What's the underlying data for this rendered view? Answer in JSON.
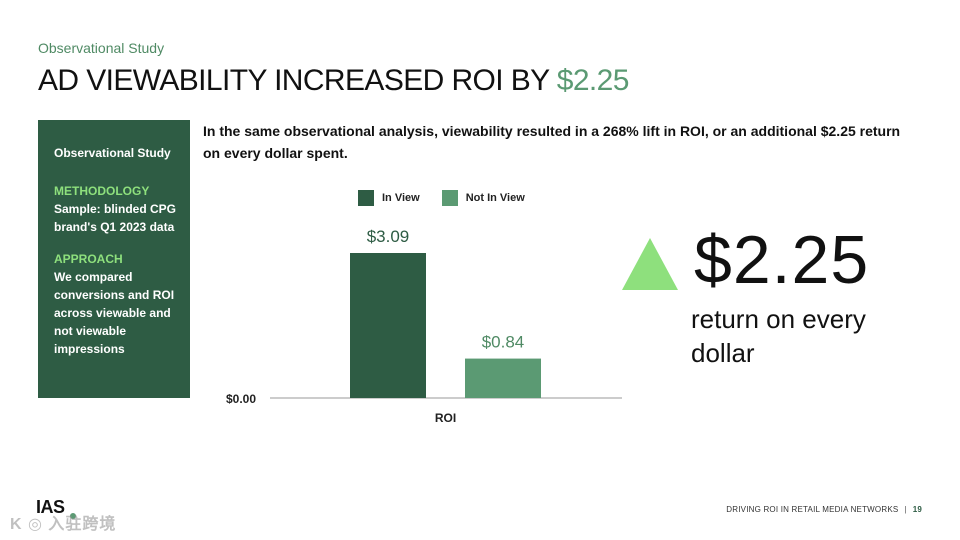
{
  "header": {
    "eyebrow": "Observational Study",
    "title_main": "AD VIEWABILITY INCREASED ROI BY ",
    "title_accent": "$2.25"
  },
  "sidebar": {
    "title": "Observational Study",
    "methodology_heading": "METHODOLOGY",
    "methodology_text": "Sample: blinded CPG brand's Q1 2023 data",
    "approach_heading": "APPROACH",
    "approach_text": "We compared conversions and ROI across viewable and not viewable impressions"
  },
  "intro": "In the same observational analysis, viewability resulted in a 268% lift in ROI, or an additional $2.25 return on every dollar spent.",
  "highlight": {
    "value": "$2.25",
    "caption": "return on every dollar"
  },
  "colors": {
    "brand_dark_green": "#2e5c44",
    "accent_green": "#5b9a73",
    "light_green": "#8ee07d",
    "bar_in_view": "#2e5c44",
    "bar_not_in_view": "#5b9a73"
  },
  "chart_data": {
    "type": "bar",
    "categories": [
      "ROI"
    ],
    "series": [
      {
        "name": "In View",
        "values": [
          3.09
        ],
        "label": "$3.09"
      },
      {
        "name": "Not In View",
        "values": [
          0.84
        ],
        "label": "$0.84"
      }
    ],
    "y_baseline_label": "$0.00",
    "xlabel": "",
    "ylabel": "",
    "ylim": [
      0,
      3.09
    ],
    "legend": "top",
    "grid": false
  },
  "footer": {
    "text": "DRIVING ROI IN RETAIL MEDIA NETWORKS",
    "separator": "|",
    "page_number": "19"
  },
  "logo": {
    "text": "IAS"
  },
  "watermark": {
    "text": "K ◎ 入驻跨境"
  }
}
